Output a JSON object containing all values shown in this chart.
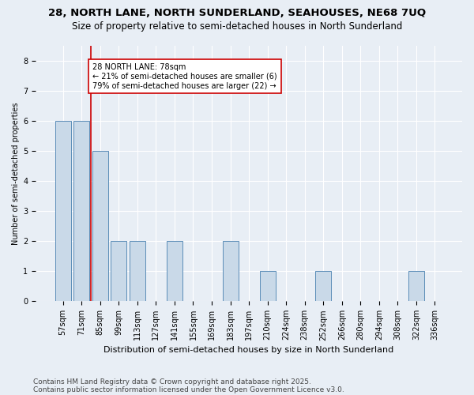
{
  "title1": "28, NORTH LANE, NORTH SUNDERLAND, SEAHOUSES, NE68 7UQ",
  "title2": "Size of property relative to semi-detached houses in North Sunderland",
  "xlabel": "Distribution of semi-detached houses by size in North Sunderland",
  "ylabel": "Number of semi-detached properties",
  "categories": [
    "57sqm",
    "71sqm",
    "85sqm",
    "99sqm",
    "113sqm",
    "127sqm",
    "141sqm",
    "155sqm",
    "169sqm",
    "183sqm",
    "197sqm",
    "210sqm",
    "224sqm",
    "238sqm",
    "252sqm",
    "266sqm",
    "280sqm",
    "294sqm",
    "308sqm",
    "322sqm",
    "336sqm"
  ],
  "values": [
    6,
    6,
    5,
    2,
    2,
    0,
    2,
    0,
    0,
    2,
    0,
    1,
    0,
    0,
    1,
    0,
    0,
    0,
    0,
    1,
    0
  ],
  "bar_color": "#c9d9e8",
  "bar_edge_color": "#5b8db8",
  "annotation_text": "28 NORTH LANE: 78sqm\n← 21% of semi-detached houses are smaller (6)\n79% of semi-detached houses are larger (22) →",
  "annotation_box_color": "#ffffff",
  "annotation_box_edge": "#cc0000",
  "red_line_color": "#cc0000",
  "ylim": [
    0,
    8.5
  ],
  "yticks": [
    0,
    1,
    2,
    3,
    4,
    5,
    6,
    7,
    8
  ],
  "footer1": "Contains HM Land Registry data © Crown copyright and database right 2025.",
  "footer2": "Contains public sector information licensed under the Open Government Licence v3.0.",
  "bg_color": "#e8eef5",
  "plot_bg_color": "#e8eef5",
  "grid_color": "#ffffff",
  "title1_fontsize": 9.5,
  "title2_fontsize": 8.5,
  "axis_fontsize": 7,
  "tick_fontsize": 7,
  "annotation_fontsize": 7,
  "footer_fontsize": 6.5,
  "xlabel_fontsize": 8
}
